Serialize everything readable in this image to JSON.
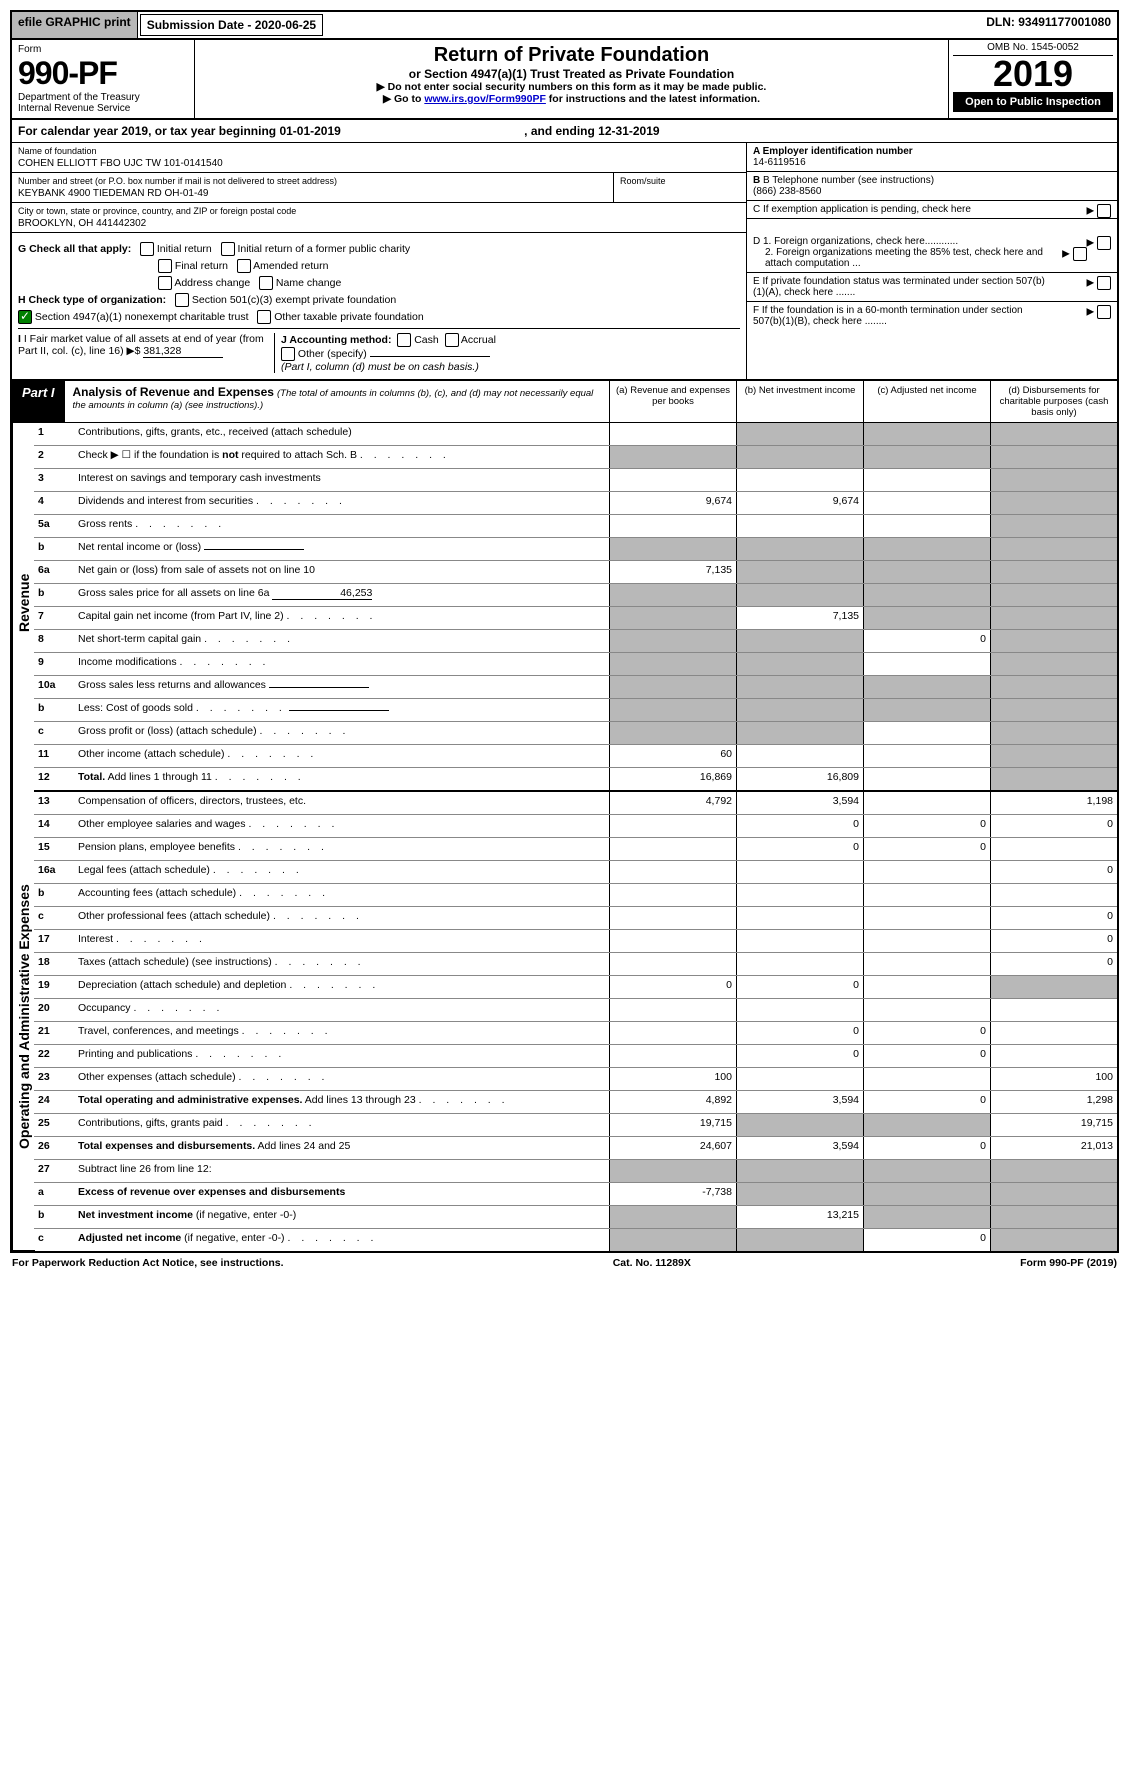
{
  "top": {
    "efile": "efile GRAPHIC print",
    "submission": "Submission Date - 2020-06-25",
    "dln": "DLN: 93491177001080"
  },
  "header": {
    "form_label": "Form",
    "form_num": "990-PF",
    "dept1": "Department of the Treasury",
    "dept2": "Internal Revenue Service",
    "title": "Return of Private Foundation",
    "subtitle": "or Section 4947(a)(1) Trust Treated as Private Foundation",
    "instr1": "▶ Do not enter social security numbers on this form as it may be made public.",
    "instr2_pre": "▶ Go to ",
    "instr2_link": "www.irs.gov/Form990PF",
    "instr2_post": " for instructions and the latest information.",
    "omb": "OMB No. 1545-0052",
    "year": "2019",
    "open": "Open to Public Inspection"
  },
  "cal_year": {
    "pre": "For calendar year 2019, or tax year beginning 01-01-2019",
    "mid": ", and ending 12-31-2019"
  },
  "entity": {
    "name_label": "Name of foundation",
    "name": "COHEN ELLIOTT FBO UJC TW 101-0141540",
    "addr_label": "Number and street (or P.O. box number if mail is not delivered to street address)",
    "addr": "KEYBANK 4900 TIEDEMAN RD OH-01-49",
    "room_label": "Room/suite",
    "city_label": "City or town, state or province, country, and ZIP or foreign postal code",
    "city": "BROOKLYN, OH  441442302",
    "ein_label": "A Employer identification number",
    "ein": "14-6119516",
    "phone_label": "B Telephone number (see instructions)",
    "phone": "(866) 238-8560",
    "c_label": "C If exemption application is pending, check here",
    "d1": "D 1. Foreign organizations, check here............",
    "d2": "2. Foreign organizations meeting the 85% test, check here and attach computation ...",
    "e_label": "E  If private foundation status was terminated under section 507(b)(1)(A), check here .......",
    "f_label": "F  If the foundation is in a 60-month termination under section 507(b)(1)(B), check here ........"
  },
  "g": {
    "label": "G Check all that apply:",
    "opts": [
      "Initial return",
      "Initial return of a former public charity",
      "Final return",
      "Amended return",
      "Address change",
      "Name change"
    ]
  },
  "h": {
    "label": "H Check type of organization:",
    "opt1": "Section 501(c)(3) exempt private foundation",
    "opt2": "Section 4947(a)(1) nonexempt charitable trust",
    "opt3": "Other taxable private foundation"
  },
  "i": {
    "label": "I Fair market value of all assets at end of year (from Part II, col. (c), line 16)",
    "value": "381,328"
  },
  "j": {
    "label": "J Accounting method:",
    "opts": [
      "Cash",
      "Accrual"
    ],
    "other": "Other (specify)",
    "note": "(Part I, column (d) must be on cash basis.)"
  },
  "part1": {
    "label": "Part I",
    "title": "Analysis of Revenue and Expenses",
    "note": "(The total of amounts in columns (b), (c), and (d) may not necessarily equal the amounts in column (a) (see instructions).)",
    "col_a": "(a)  Revenue and expenses per books",
    "col_b": "(b)  Net investment income",
    "col_c": "(c)  Adjusted net income",
    "col_d": "(d)  Disbursements for charitable purposes (cash basis only)"
  },
  "side_labels": {
    "revenue": "Revenue",
    "expenses": "Operating and Administrative Expenses"
  },
  "rows": [
    {
      "n": "1",
      "d": "Contributions, gifts, grants, etc., received (attach schedule)",
      "a": "",
      "b": "grey",
      "c": "grey",
      "dv": "grey"
    },
    {
      "n": "2",
      "d": "Check ▶ ☐ if the foundation is <b>not</b> required to attach Sch. B",
      "dots": true,
      "a": "grey",
      "b": "grey",
      "c": "grey",
      "dv": "grey"
    },
    {
      "n": "3",
      "d": "Interest on savings and temporary cash investments",
      "a": "",
      "b": "",
      "c": "",
      "dv": "grey"
    },
    {
      "n": "4",
      "d": "Dividends and interest from securities",
      "dots": true,
      "a": "9,674",
      "b": "9,674",
      "c": "",
      "dv": "grey"
    },
    {
      "n": "5a",
      "d": "Gross rents",
      "dots": true,
      "a": "",
      "b": "",
      "c": "",
      "dv": "grey"
    },
    {
      "n": "b",
      "d": "Net rental income or (loss)",
      "inline": true,
      "a": "grey",
      "b": "grey",
      "c": "grey",
      "dv": "grey"
    },
    {
      "n": "6a",
      "d": "Net gain or (loss) from sale of assets not on line 10",
      "a": "7,135",
      "b": "grey",
      "c": "grey",
      "dv": "grey"
    },
    {
      "n": "b",
      "d": "Gross sales price for all assets on line 6a",
      "inline": true,
      "inline_val": "46,253",
      "a": "grey",
      "b": "grey",
      "c": "grey",
      "dv": "grey"
    },
    {
      "n": "7",
      "d": "Capital gain net income (from Part IV, line 2)",
      "dots": true,
      "a": "grey",
      "b": "7,135",
      "c": "grey",
      "dv": "grey"
    },
    {
      "n": "8",
      "d": "Net short-term capital gain",
      "dots": true,
      "a": "grey",
      "b": "grey",
      "c": "0",
      "dv": "grey"
    },
    {
      "n": "9",
      "d": "Income modifications",
      "dots": true,
      "a": "grey",
      "b": "grey",
      "c": "",
      "dv": "grey"
    },
    {
      "n": "10a",
      "d": "Gross sales less returns and allowances",
      "inline": true,
      "a": "grey",
      "b": "grey",
      "c": "grey",
      "dv": "grey"
    },
    {
      "n": "b",
      "d": "Less: Cost of goods sold",
      "dots": true,
      "inline": true,
      "a": "grey",
      "b": "grey",
      "c": "grey",
      "dv": "grey"
    },
    {
      "n": "c",
      "d": "Gross profit or (loss) (attach schedule)",
      "dots": true,
      "a": "grey",
      "b": "grey",
      "c": "",
      "dv": "grey"
    },
    {
      "n": "11",
      "d": "Other income (attach schedule)",
      "dots": true,
      "a": "60",
      "b": "",
      "c": "",
      "dv": "grey"
    },
    {
      "n": "12",
      "d": "<b>Total.</b> Add lines 1 through 11",
      "dots": true,
      "a": "16,869",
      "b": "16,809",
      "c": "",
      "dv": "grey"
    }
  ],
  "exp_rows": [
    {
      "n": "13",
      "d": "Compensation of officers, directors, trustees, etc.",
      "a": "4,792",
      "b": "3,594",
      "c": "",
      "dv": "1,198"
    },
    {
      "n": "14",
      "d": "Other employee salaries and wages",
      "dots": true,
      "a": "",
      "b": "0",
      "c": "0",
      "dv": "0"
    },
    {
      "n": "15",
      "d": "Pension plans, employee benefits",
      "dots": true,
      "a": "",
      "b": "0",
      "c": "0",
      "dv": ""
    },
    {
      "n": "16a",
      "d": "Legal fees (attach schedule)",
      "dots": true,
      "a": "",
      "b": "",
      "c": "",
      "dv": "0"
    },
    {
      "n": "b",
      "d": "Accounting fees (attach schedule)",
      "dots": true,
      "a": "",
      "b": "",
      "c": "",
      "dv": ""
    },
    {
      "n": "c",
      "d": "Other professional fees (attach schedule)",
      "dots": true,
      "a": "",
      "b": "",
      "c": "",
      "dv": "0"
    },
    {
      "n": "17",
      "d": "Interest",
      "dots": true,
      "a": "",
      "b": "",
      "c": "",
      "dv": "0"
    },
    {
      "n": "18",
      "d": "Taxes (attach schedule) (see instructions)",
      "dots": true,
      "a": "",
      "b": "",
      "c": "",
      "dv": "0"
    },
    {
      "n": "19",
      "d": "Depreciation (attach schedule) and depletion",
      "dots": true,
      "a": "0",
      "b": "0",
      "c": "",
      "dv": "grey"
    },
    {
      "n": "20",
      "d": "Occupancy",
      "dots": true,
      "a": "",
      "b": "",
      "c": "",
      "dv": ""
    },
    {
      "n": "21",
      "d": "Travel, conferences, and meetings",
      "dots": true,
      "a": "",
      "b": "0",
      "c": "0",
      "dv": ""
    },
    {
      "n": "22",
      "d": "Printing and publications",
      "dots": true,
      "a": "",
      "b": "0",
      "c": "0",
      "dv": ""
    },
    {
      "n": "23",
      "d": "Other expenses (attach schedule)",
      "dots": true,
      "a": "100",
      "b": "",
      "c": "",
      "dv": "100"
    },
    {
      "n": "24",
      "d": "<b>Total operating and administrative expenses.</b> Add lines 13 through 23",
      "dots": true,
      "a": "4,892",
      "b": "3,594",
      "c": "0",
      "dv": "1,298"
    },
    {
      "n": "25",
      "d": "Contributions, gifts, grants paid",
      "dots": true,
      "a": "19,715",
      "b": "grey",
      "c": "grey",
      "dv": "19,715"
    },
    {
      "n": "26",
      "d": "<b>Total expenses and disbursements.</b> Add lines 24 and 25",
      "a": "24,607",
      "b": "3,594",
      "c": "0",
      "dv": "21,013"
    },
    {
      "n": "27",
      "d": "Subtract line 26 from line 12:",
      "a": "grey",
      "b": "grey",
      "c": "grey",
      "dv": "grey"
    },
    {
      "n": "a",
      "d": "<b>Excess of revenue over expenses and disbursements</b>",
      "a": "-7,738",
      "b": "grey",
      "c": "grey",
      "dv": "grey"
    },
    {
      "n": "b",
      "d": "<b>Net investment income</b> (if negative, enter -0-)",
      "a": "grey",
      "b": "13,215",
      "c": "grey",
      "dv": "grey"
    },
    {
      "n": "c",
      "d": "<b>Adjusted net income</b> (if negative, enter -0-)",
      "dots": true,
      "a": "grey",
      "b": "grey",
      "c": "0",
      "dv": "grey"
    }
  ],
  "footer": {
    "left": "For Paperwork Reduction Act Notice, see instructions.",
    "mid": "Cat. No. 11289X",
    "right": "Form 990-PF (2019)"
  }
}
